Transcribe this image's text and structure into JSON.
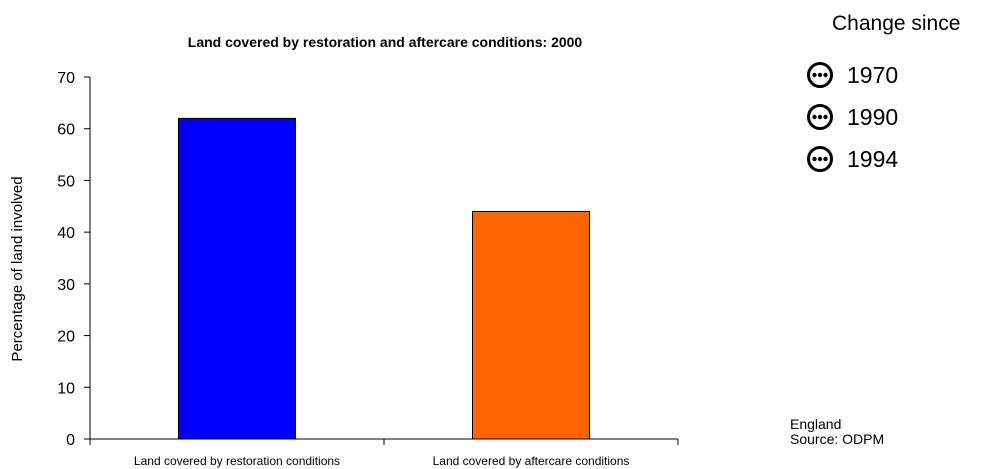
{
  "chart_data": {
    "type": "bar",
    "title": "Land covered by restoration and aftercare conditions: 2000",
    "categories": [
      "Land covered by restoration conditions",
      "Land covered by aftercare conditions"
    ],
    "values": [
      62,
      44
    ],
    "colors": [
      "#0000ff",
      "#ff6600"
    ],
    "ylabel": "Percentage of land involved",
    "xlabel": "",
    "ylim": [
      0,
      70
    ],
    "yticks": [
      0,
      10,
      20,
      30,
      40,
      50,
      60,
      70
    ],
    "grid": false,
    "legend": "none"
  },
  "side_panel": {
    "heading": "Change since",
    "indicator_icon": "dotted-circle-icon",
    "years": [
      "1970",
      "1990",
      "1994"
    ]
  },
  "footer": {
    "region": "England",
    "source": "Source: ODPM"
  }
}
